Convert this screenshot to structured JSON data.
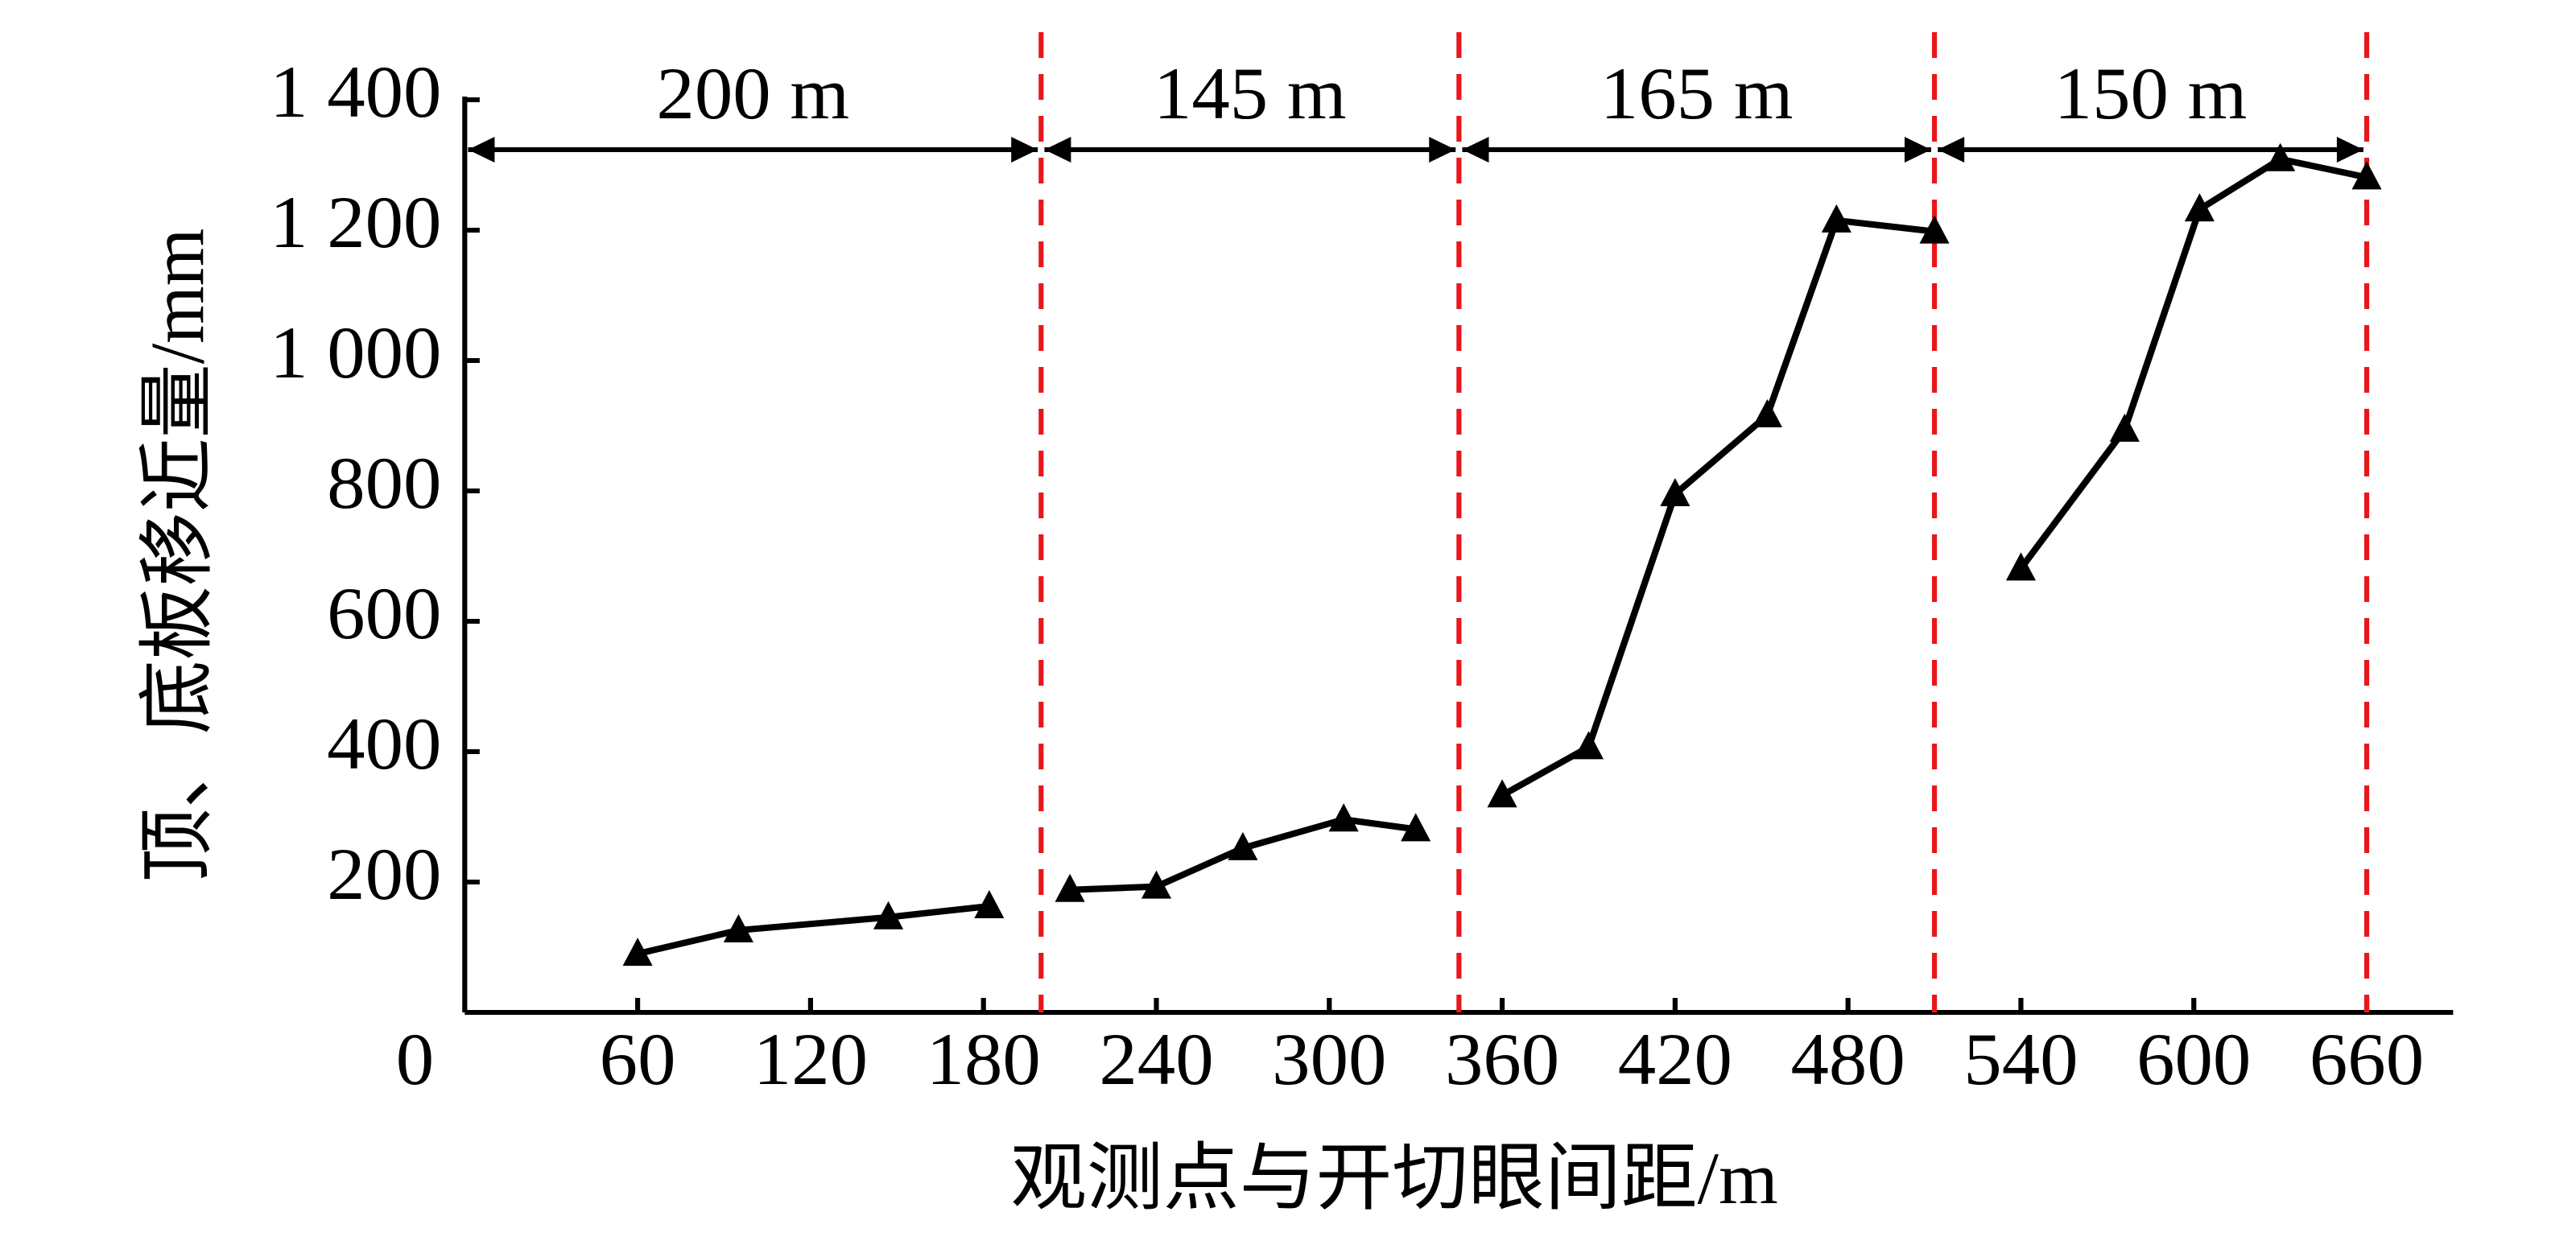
{
  "chart_data": {
    "type": "line",
    "xlabel": "观测点与开切眼间距/m",
    "ylabel": "顶、底板移近量/mm",
    "x": [
      60,
      95,
      147,
      182,
      null,
      210,
      240,
      270,
      305,
      330,
      null,
      360,
      390,
      420,
      452,
      476,
      510,
      null,
      540,
      576,
      602,
      630,
      660
    ],
    "series": [
      {
        "color": "#000000",
        "marker": "triangle",
        "values": [
          90,
          126,
          146,
          163,
          null,
          188,
          193,
          252,
          296,
          281,
          null,
          333,
          407,
          795,
          916,
          1215,
          1198,
          null,
          681,
          894,
          1232,
          1309,
          1281
        ]
      }
    ],
    "xlim": [
      0,
      690
    ],
    "ylim": [
      0,
      1400
    ],
    "xticks": [
      0,
      60,
      120,
      180,
      240,
      300,
      360,
      420,
      480,
      540,
      600,
      660
    ],
    "yticks": [
      200,
      400,
      600,
      800,
      {
        "value": 1000,
        "label": "1 000"
      },
      {
        "value": 1200,
        "label": "1 200"
      },
      {
        "value": 1400,
        "label": "1 400"
      }
    ],
    "dividers": [
      200,
      345,
      510,
      660
    ],
    "divider_color": "#e8171b",
    "spans": [
      "200 m",
      "145 m",
      "165 m",
      "150 m"
    ]
  }
}
